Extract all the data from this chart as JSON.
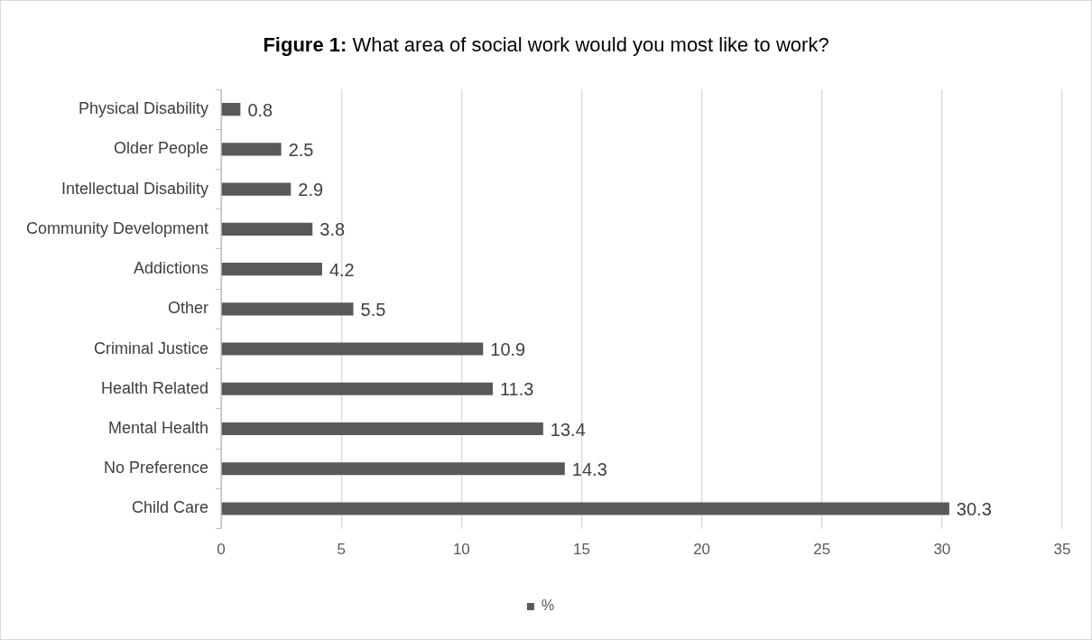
{
  "chart_data": {
    "type": "bar",
    "orientation": "horizontal",
    "title": "Figure 1: What area of social work would you most like to work?",
    "categories": [
      "Physical Disability",
      "Older People",
      "Intellectual Disability",
      "Community Development",
      "Addictions",
      "Other",
      "Criminal Justice",
      "Health Related",
      "Mental Health",
      "No Preference",
      "Child Care"
    ],
    "series": [
      {
        "name": "%",
        "color": "#595959",
        "values": [
          0.8,
          2.5,
          2.9,
          3.8,
          4.2,
          5.5,
          10.9,
          11.3,
          13.4,
          14.3,
          30.3
        ]
      }
    ],
    "xlim": [
      0,
      35
    ],
    "xticks": [
      0,
      5,
      10,
      15,
      20,
      25,
      30,
      35
    ],
    "grid": "x",
    "legend": "bottom",
    "data_labels": true
  }
}
